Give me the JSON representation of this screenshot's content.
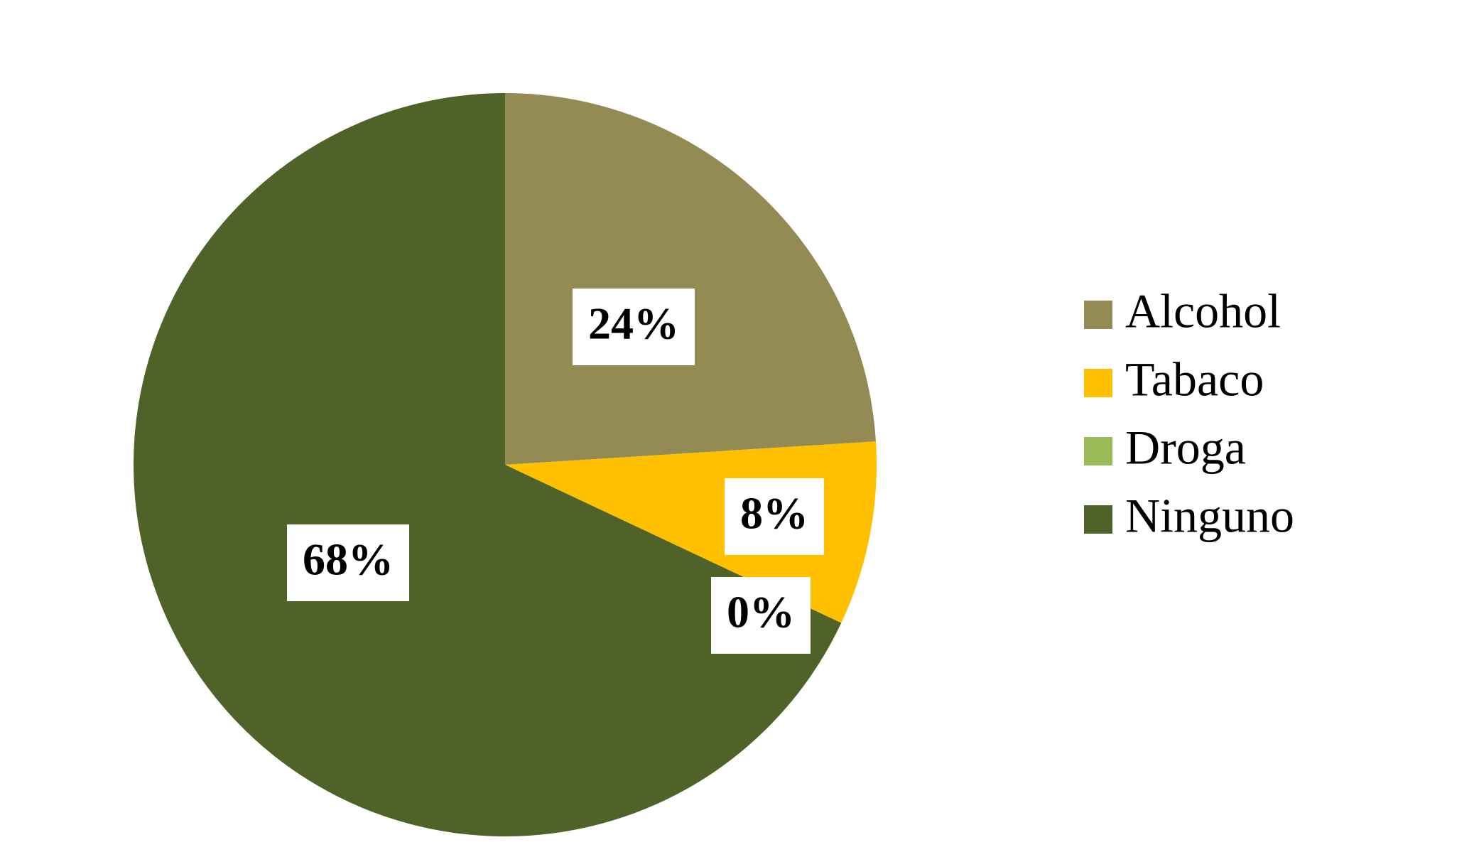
{
  "chart_data": {
    "type": "pie",
    "categories": [
      "Alcohol",
      "Tabaco",
      "Droga",
      "Ninguno"
    ],
    "values": [
      24,
      8,
      0,
      68
    ],
    "value_labels": [
      "24%",
      "8%",
      "0%",
      "68%"
    ],
    "colors": [
      "#948a54",
      "#ffc000",
      "#9bbb59",
      "#4f6228"
    ],
    "legend": "right"
  }
}
